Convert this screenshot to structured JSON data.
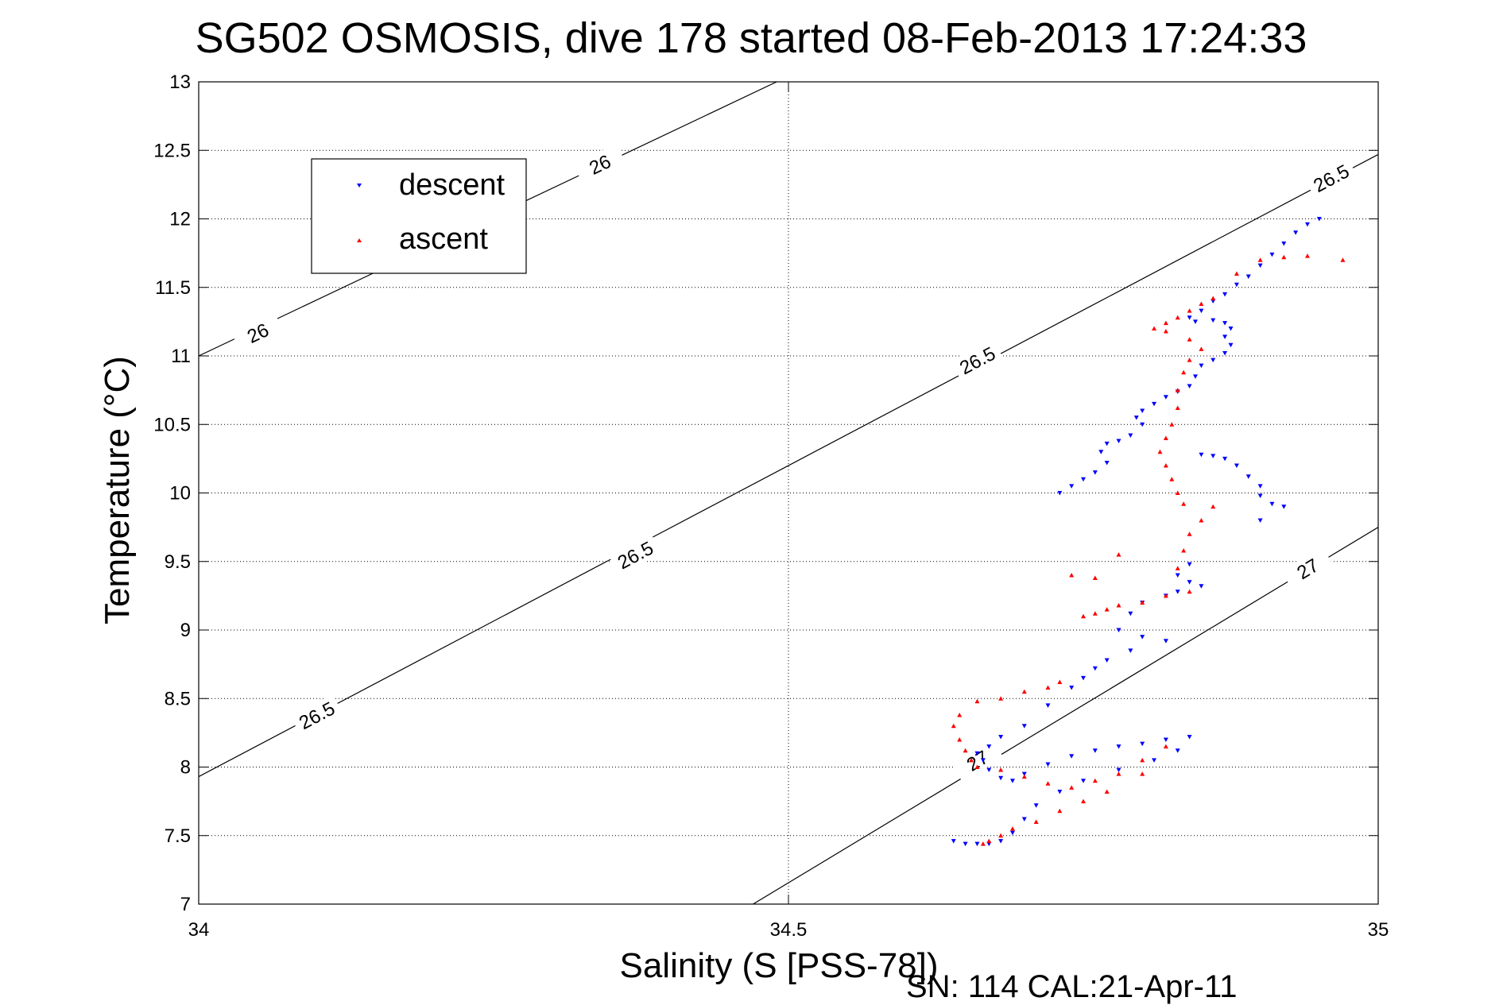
{
  "chart_data": {
    "type": "scatter",
    "title": "SG502 OSMOSIS, dive 178 started 08-Feb-2013 17:24:33",
    "xlabel": "Salinity (S [PSS-78])",
    "ylabel": "Temperature (°C)",
    "xlim": [
      34,
      35
    ],
    "ylim": [
      7,
      13
    ],
    "x_ticks": [
      "34",
      "34.5",
      "35"
    ],
    "y_ticks": [
      "7",
      "7.5",
      "8",
      "8.5",
      "9",
      "9.5",
      "10",
      "10.5",
      "11",
      "11.5",
      "12",
      "12.5",
      "13"
    ],
    "grid": true,
    "legend_position": "top-left",
    "footer": "SN: 114  CAL:21-Apr-11",
    "density_contours": [
      {
        "label": "26",
        "points": [
          [
            34,
            11.0
          ],
          [
            34.49,
            13.0
          ]
        ],
        "label_at": [
          [
            34.05,
            11.17
          ],
          [
            34.34,
            12.4
          ]
        ]
      },
      {
        "label": "26.5",
        "points": [
          [
            34,
            7.93
          ],
          [
            35,
            12.47
          ]
        ],
        "label_at": [
          [
            34.1,
            8.38
          ],
          [
            34.37,
            9.55
          ],
          [
            34.66,
            10.97
          ],
          [
            34.96,
            12.3
          ]
        ]
      },
      {
        "label": "27",
        "points": [
          [
            34.47,
            7.0
          ],
          [
            35,
            9.75
          ]
        ],
        "label_at": [
          [
            34.66,
            8.05
          ],
          [
            34.94,
            9.45
          ]
        ]
      }
    ],
    "series": [
      {
        "name": "descent",
        "color": "#0000ff",
        "marker": "triangle-down",
        "points": [
          [
            34.95,
            12.0
          ],
          [
            34.94,
            11.96
          ],
          [
            34.93,
            11.9
          ],
          [
            34.92,
            11.82
          ],
          [
            34.91,
            11.74
          ],
          [
            34.9,
            11.66
          ],
          [
            34.89,
            11.58
          ],
          [
            34.88,
            11.52
          ],
          [
            34.87,
            11.45
          ],
          [
            34.86,
            11.4
          ],
          [
            34.85,
            11.33
          ],
          [
            34.84,
            11.28
          ],
          [
            34.845,
            11.25
          ],
          [
            34.86,
            11.26
          ],
          [
            34.87,
            11.24
          ],
          [
            34.875,
            11.2
          ],
          [
            34.87,
            11.14
          ],
          [
            34.875,
            11.08
          ],
          [
            34.87,
            11.02
          ],
          [
            34.86,
            10.97
          ],
          [
            34.85,
            10.93
          ],
          [
            34.845,
            10.85
          ],
          [
            34.84,
            10.78
          ],
          [
            34.83,
            10.74
          ],
          [
            34.82,
            10.7
          ],
          [
            34.81,
            10.65
          ],
          [
            34.8,
            10.6
          ],
          [
            34.795,
            10.55
          ],
          [
            34.8,
            10.5
          ],
          [
            34.79,
            10.42
          ],
          [
            34.78,
            10.38
          ],
          [
            34.77,
            10.36
          ],
          [
            34.765,
            10.3
          ],
          [
            34.77,
            10.22
          ],
          [
            34.76,
            10.15
          ],
          [
            34.75,
            10.1
          ],
          [
            34.74,
            10.05
          ],
          [
            34.73,
            10.0
          ],
          [
            34.85,
            10.28
          ],
          [
            34.86,
            10.27
          ],
          [
            34.87,
            10.25
          ],
          [
            34.88,
            10.2
          ],
          [
            34.89,
            10.12
          ],
          [
            34.9,
            10.05
          ],
          [
            34.9,
            9.98
          ],
          [
            34.91,
            9.92
          ],
          [
            34.92,
            9.9
          ],
          [
            34.9,
            9.8
          ],
          [
            34.83,
            9.4
          ],
          [
            34.84,
            9.35
          ],
          [
            34.85,
            9.32
          ],
          [
            34.84,
            9.48
          ],
          [
            34.83,
            9.28
          ],
          [
            34.82,
            9.25
          ],
          [
            34.8,
            9.2
          ],
          [
            34.79,
            9.12
          ],
          [
            34.78,
            9.0
          ],
          [
            34.8,
            8.95
          ],
          [
            34.82,
            8.92
          ],
          [
            34.79,
            8.85
          ],
          [
            34.77,
            8.78
          ],
          [
            34.76,
            8.72
          ],
          [
            34.75,
            8.65
          ],
          [
            34.74,
            8.58
          ],
          [
            34.72,
            8.45
          ],
          [
            34.7,
            8.3
          ],
          [
            34.68,
            8.22
          ],
          [
            34.67,
            8.15
          ],
          [
            34.66,
            8.1
          ],
          [
            34.665,
            8.05
          ],
          [
            34.67,
            7.98
          ],
          [
            34.68,
            7.92
          ],
          [
            34.69,
            7.9
          ],
          [
            34.7,
            7.95
          ],
          [
            34.72,
            8.02
          ],
          [
            34.74,
            8.08
          ],
          [
            34.76,
            8.12
          ],
          [
            34.78,
            8.15
          ],
          [
            34.8,
            8.17
          ],
          [
            34.82,
            8.2
          ],
          [
            34.84,
            8.22
          ],
          [
            34.83,
            8.12
          ],
          [
            34.81,
            8.05
          ],
          [
            34.78,
            7.98
          ],
          [
            34.75,
            7.9
          ],
          [
            34.73,
            7.82
          ],
          [
            34.71,
            7.72
          ],
          [
            34.7,
            7.62
          ],
          [
            34.69,
            7.52
          ],
          [
            34.68,
            7.46
          ],
          [
            34.67,
            7.44
          ],
          [
            34.66,
            7.44
          ],
          [
            34.65,
            7.44
          ],
          [
            34.64,
            7.46
          ]
        ]
      },
      {
        "name": "ascent",
        "color": "#ff0000",
        "marker": "triangle-up",
        "points": [
          [
            34.97,
            11.7
          ],
          [
            34.94,
            11.73
          ],
          [
            34.92,
            11.72
          ],
          [
            34.9,
            11.7
          ],
          [
            34.88,
            11.6
          ],
          [
            34.86,
            11.42
          ],
          [
            34.85,
            11.38
          ],
          [
            34.84,
            11.33
          ],
          [
            34.83,
            11.28
          ],
          [
            34.82,
            11.24
          ],
          [
            34.81,
            11.2
          ],
          [
            34.82,
            11.18
          ],
          [
            34.84,
            11.12
          ],
          [
            34.85,
            11.05
          ],
          [
            34.84,
            10.97
          ],
          [
            34.835,
            10.88
          ],
          [
            34.83,
            10.75
          ],
          [
            34.83,
            10.62
          ],
          [
            34.825,
            10.5
          ],
          [
            34.82,
            10.4
          ],
          [
            34.815,
            10.3
          ],
          [
            34.82,
            10.2
          ],
          [
            34.825,
            10.1
          ],
          [
            34.83,
            10.0
          ],
          [
            34.835,
            9.92
          ],
          [
            34.86,
            9.9
          ],
          [
            34.85,
            9.8
          ],
          [
            34.84,
            9.7
          ],
          [
            34.835,
            9.58
          ],
          [
            34.83,
            9.45
          ],
          [
            34.84,
            9.28
          ],
          [
            34.82,
            9.25
          ],
          [
            34.8,
            9.2
          ],
          [
            34.78,
            9.18
          ],
          [
            34.77,
            9.15
          ],
          [
            34.76,
            9.12
          ],
          [
            34.75,
            9.1
          ],
          [
            34.76,
            9.38
          ],
          [
            34.78,
            9.55
          ],
          [
            34.74,
            9.4
          ],
          [
            34.73,
            8.62
          ],
          [
            34.72,
            8.58
          ],
          [
            34.7,
            8.55
          ],
          [
            34.68,
            8.5
          ],
          [
            34.66,
            8.48
          ],
          [
            34.645,
            8.38
          ],
          [
            34.64,
            8.3
          ],
          [
            34.645,
            8.2
          ],
          [
            34.65,
            8.12
          ],
          [
            34.655,
            8.05
          ],
          [
            34.66,
            8.0
          ],
          [
            34.68,
            7.98
          ],
          [
            34.7,
            7.93
          ],
          [
            34.72,
            7.88
          ],
          [
            34.74,
            7.85
          ],
          [
            34.76,
            7.9
          ],
          [
            34.78,
            7.95
          ],
          [
            34.8,
            8.05
          ],
          [
            34.82,
            8.15
          ],
          [
            34.8,
            7.95
          ],
          [
            34.77,
            7.82
          ],
          [
            34.75,
            7.75
          ],
          [
            34.73,
            7.68
          ],
          [
            34.71,
            7.6
          ],
          [
            34.69,
            7.55
          ],
          [
            34.68,
            7.5
          ],
          [
            34.67,
            7.46
          ],
          [
            34.665,
            7.44
          ]
        ]
      }
    ]
  }
}
